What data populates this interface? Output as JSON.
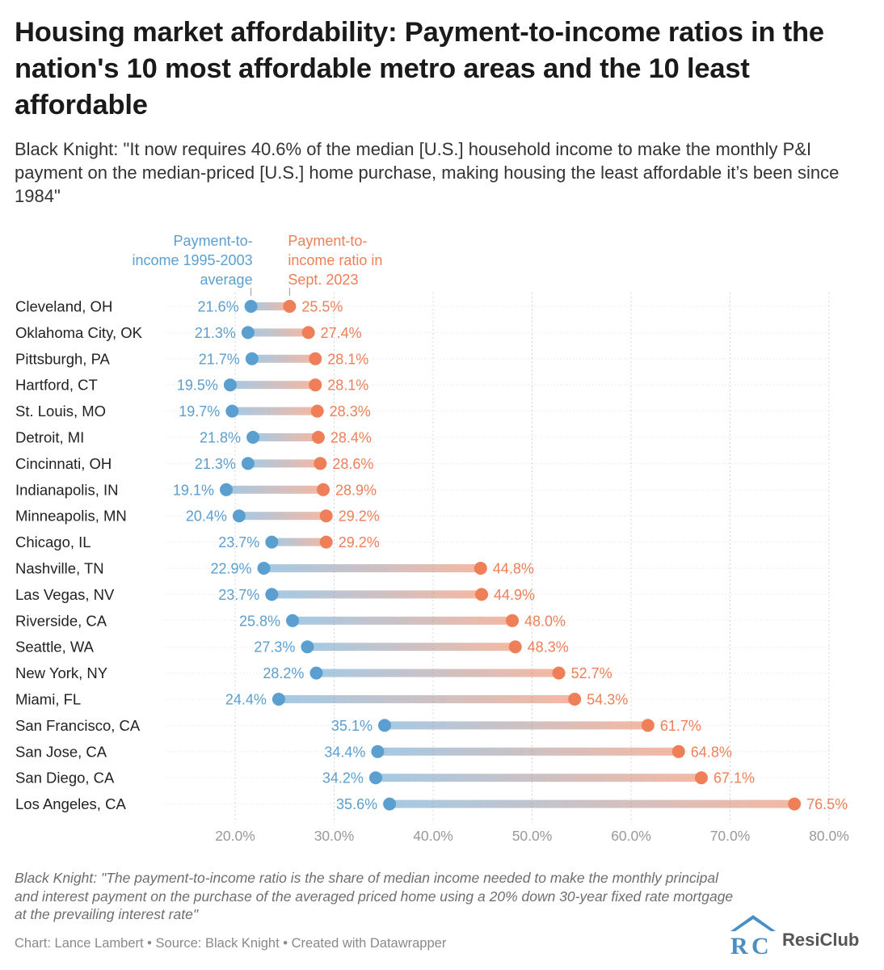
{
  "title": "Housing market affordability: Payment-to-income ratios in the nation's 10 most affordable metro areas and the 10 least affordable",
  "subtitle": "Black Knight: \"It now requires 40.6% of the median [U.S.] household income to make the monthly P&I payment on the median-priced [U.S.] home purchase, making housing the least affordable it’s been since 1984\"",
  "note": "Black Knight: \"The payment-to-income ratio is the share of median income needed to make the monthly principal and interest payment on the purchase of the averaged priced home using a 20% down 30-year fixed rate mortgage at the prevailing interest rate\"",
  "credit": "Chart: Lance Lambert • Source: Black Knight • Created with Datawrapper",
  "logo": {
    "text": "ResiClub"
  },
  "colors": {
    "avg": "#5b9fd0",
    "sept": "#ee7f58",
    "grid": "#d4d4d4",
    "tick": "#999999",
    "label": "#222222"
  },
  "chart_data": {
    "type": "dot-range",
    "x_ticks": [
      "20.0%",
      "30.0%",
      "40.0%",
      "50.0%",
      "60.0%",
      "70.0%",
      "80.0%"
    ],
    "x_tick_values": [
      20,
      30,
      40,
      50,
      60,
      70,
      80
    ],
    "xlim": [
      20,
      80
    ],
    "grid": true,
    "series": [
      {
        "name": "Payment-to-income 1995-2003 average",
        "key": "avg"
      },
      {
        "name": "Payment-to-income ratio in Sept. 2023",
        "key": "sept"
      }
    ],
    "rows": [
      {
        "metro": "Cleveland, OH",
        "avg": 21.6,
        "sept": 25.5
      },
      {
        "metro": "Oklahoma City, OK",
        "avg": 21.3,
        "sept": 27.4
      },
      {
        "metro": "Pittsburgh, PA",
        "avg": 21.7,
        "sept": 28.1
      },
      {
        "metro": "Hartford, CT",
        "avg": 19.5,
        "sept": 28.1
      },
      {
        "metro": "St. Louis, MO",
        "avg": 19.7,
        "sept": 28.3
      },
      {
        "metro": "Detroit, MI",
        "avg": 21.8,
        "sept": 28.4
      },
      {
        "metro": "Cincinnati, OH",
        "avg": 21.3,
        "sept": 28.6
      },
      {
        "metro": "Indianapolis, IN",
        "avg": 19.1,
        "sept": 28.9
      },
      {
        "metro": "Minneapolis, MN",
        "avg": 20.4,
        "sept": 29.2
      },
      {
        "metro": "Chicago, IL",
        "avg": 23.7,
        "sept": 29.2
      },
      {
        "metro": "Nashville, TN",
        "avg": 22.9,
        "sept": 44.8
      },
      {
        "metro": "Las Vegas, NV",
        "avg": 23.7,
        "sept": 44.9
      },
      {
        "metro": "Riverside, CA",
        "avg": 25.8,
        "sept": 48.0
      },
      {
        "metro": "Seattle, WA",
        "avg": 27.3,
        "sept": 48.3
      },
      {
        "metro": "New York, NY",
        "avg": 28.2,
        "sept": 52.7
      },
      {
        "metro": "Miami, FL",
        "avg": 24.4,
        "sept": 54.3
      },
      {
        "metro": "San Francisco, CA",
        "avg": 35.1,
        "sept": 61.7
      },
      {
        "metro": "San Jose, CA",
        "avg": 34.4,
        "sept": 64.8
      },
      {
        "metro": "San Diego, CA",
        "avg": 34.2,
        "sept": 67.1
      },
      {
        "metro": "Los Angeles, CA",
        "avg": 35.6,
        "sept": 76.5
      }
    ]
  }
}
